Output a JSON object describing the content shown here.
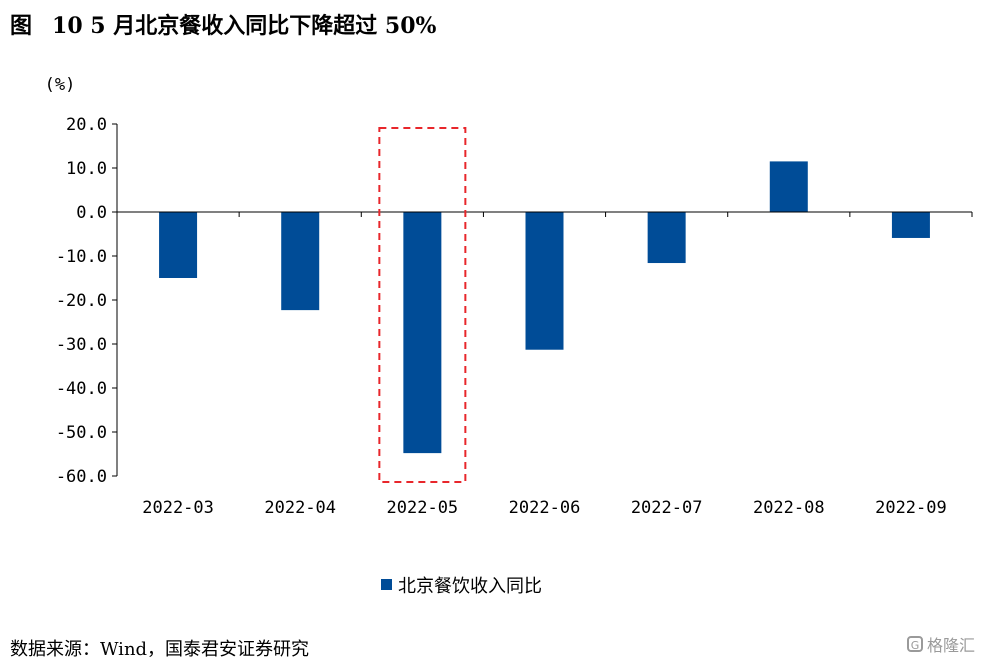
{
  "figure": {
    "label": "图",
    "title": "10 5 月北京餐收入同比下降超过 50%"
  },
  "source": "数据来源：Wind，国泰君安证券研究",
  "watermark": {
    "text": "格隆汇",
    "icon": "gelonghui-logo-icon"
  },
  "chart_data": {
    "type": "bar",
    "title": "",
    "unit_label": "(%)",
    "categories": [
      "2022-03",
      "2022-04",
      "2022-05",
      "2022-06",
      "2022-07",
      "2022-08",
      "2022-09"
    ],
    "series": [
      {
        "name": "北京餐饮收入同比",
        "color": "#004C97",
        "values": [
          -15.0,
          -22.3,
          -54.8,
          -31.3,
          -11.6,
          11.5,
          -5.9
        ]
      }
    ],
    "ylim": [
      -60,
      20
    ],
    "yticks": [
      20,
      10,
      0,
      -10,
      -20,
      -30,
      -40,
      -50,
      -60
    ],
    "ytick_labels": [
      "20.0",
      "10.0",
      "0.0",
      "-10.0",
      "-20.0",
      "-30.0",
      "-40.0",
      "-50.0",
      "-60.0"
    ],
    "grid": false,
    "legend_position": "bottom-center",
    "highlight": {
      "category": "2022-05",
      "style": "dashed box",
      "color": "#E8262B"
    }
  }
}
